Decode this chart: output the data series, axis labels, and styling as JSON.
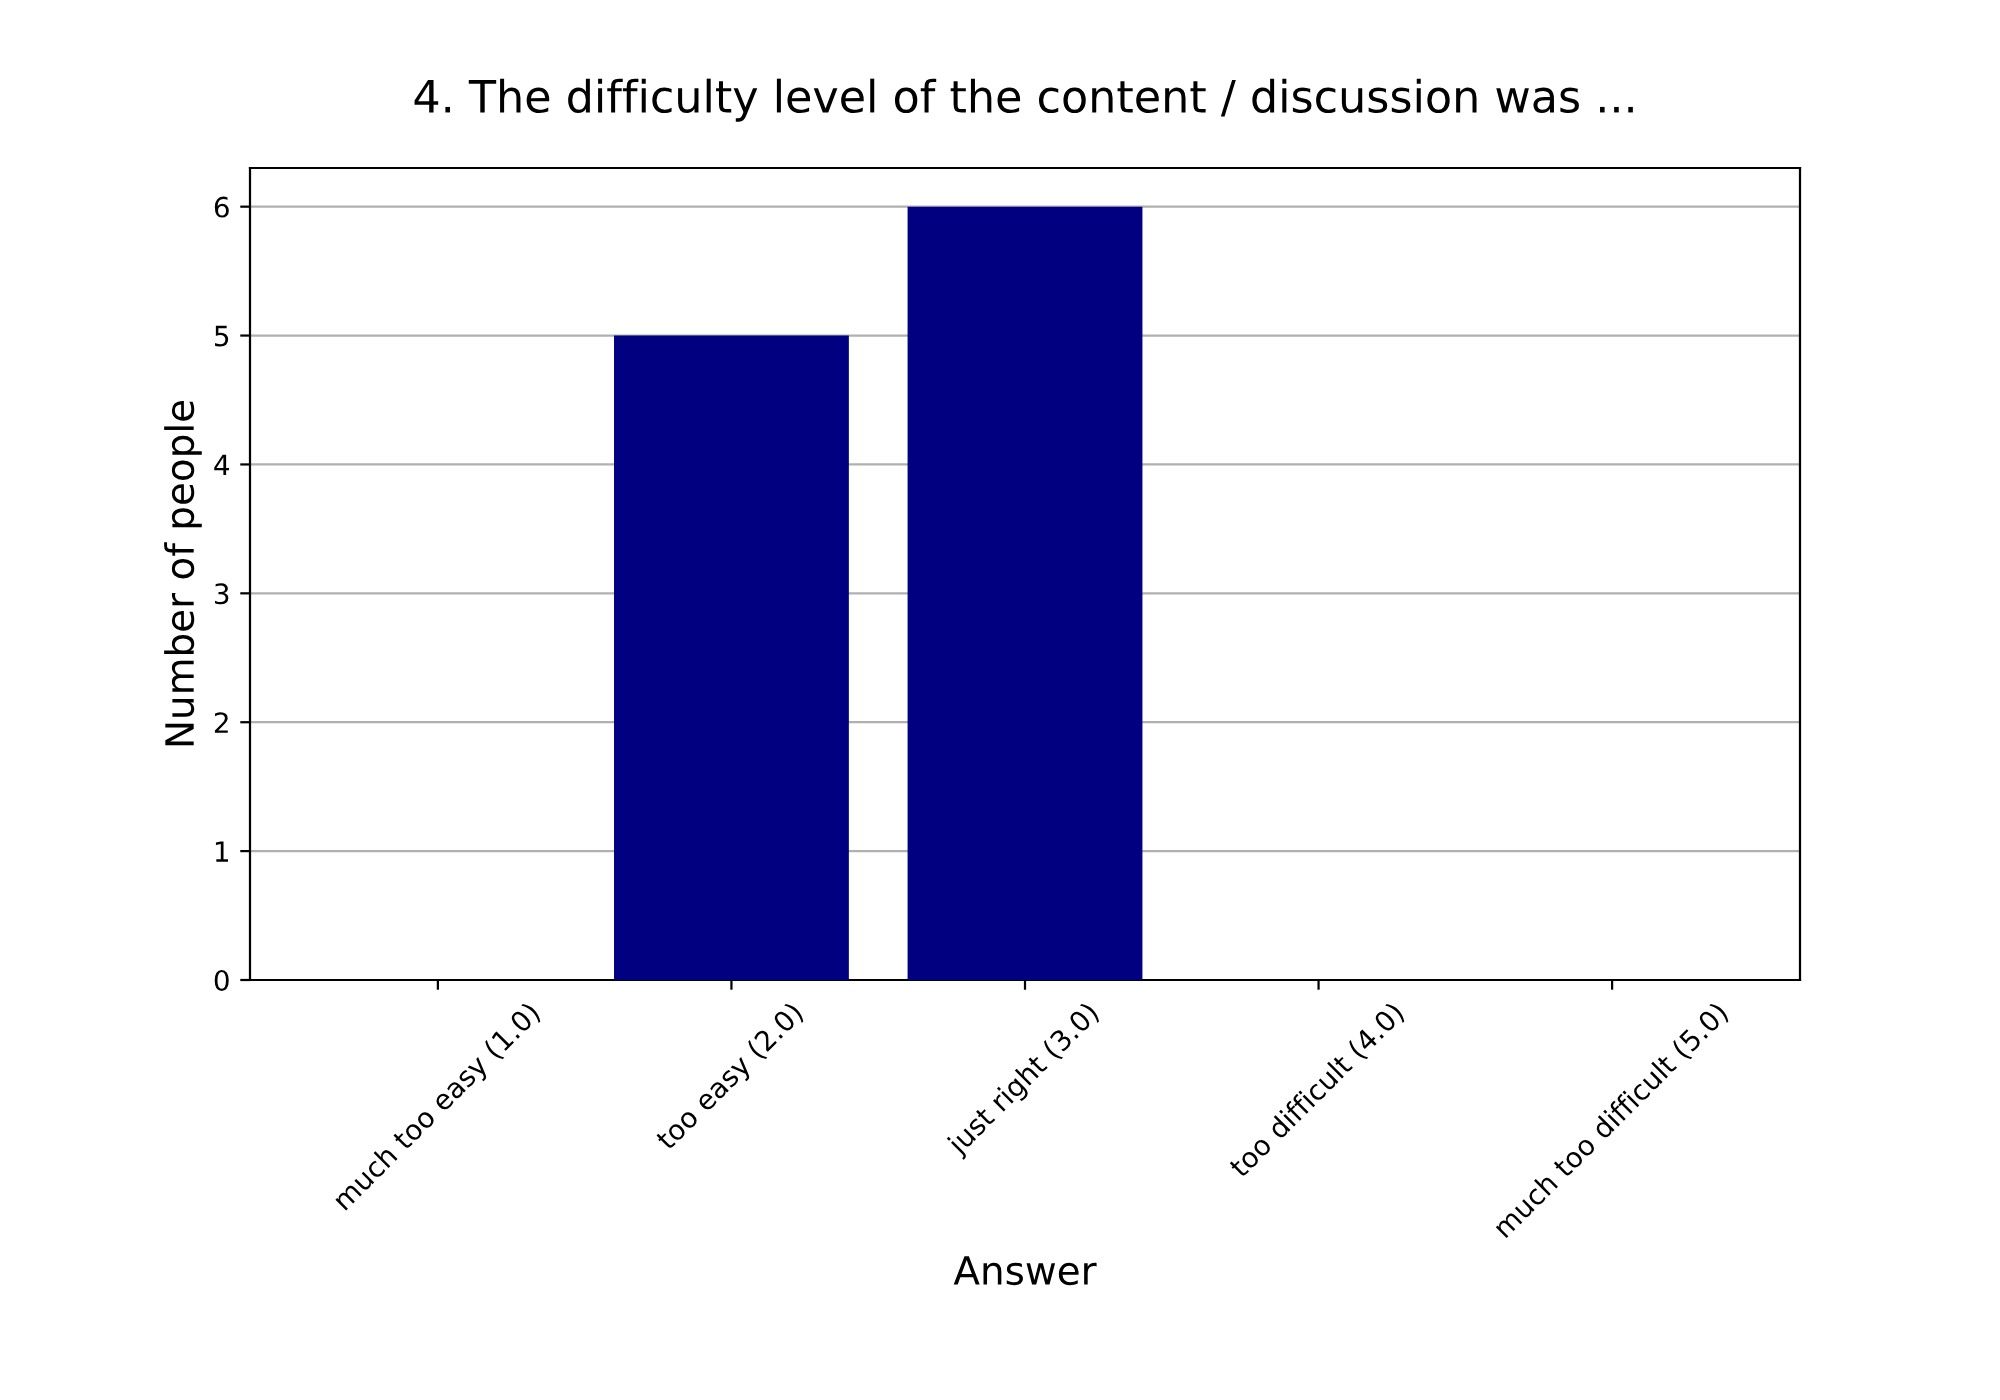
{
  "chart_data": {
    "type": "bar",
    "title": "4. The difficulty level of the content / discussion was ...",
    "xlabel": "Answer",
    "ylabel": "Number of people",
    "categories": [
      "much too easy (1.0)",
      "too easy (2.0)",
      "just right (3.0)",
      "too difficult (4.0)",
      "much too difficult (5.0)"
    ],
    "values": [
      0,
      5,
      6,
      0,
      0
    ],
    "color": "#000080",
    "ylim": [
      0,
      6.3
    ],
    "yticks": [
      0,
      1,
      2,
      3,
      4,
      5,
      6
    ],
    "grid": "y"
  }
}
